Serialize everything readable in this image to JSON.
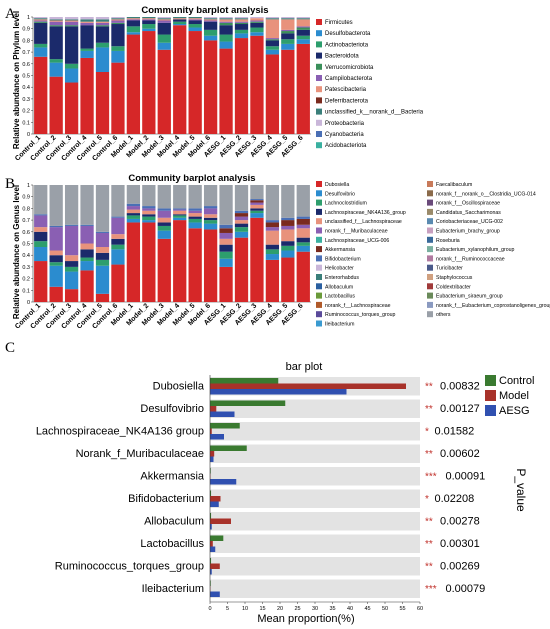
{
  "panels": {
    "A": {
      "label": "A",
      "title": "Community barplot analysis",
      "ylabel": "Relative abundance on Phylum level",
      "yticks": [
        "0",
        "0.1",
        "0.2",
        "0.3",
        "0.4",
        "0.5",
        "0.6",
        "0.7",
        "0.8",
        "0.9",
        "1"
      ],
      "samples": [
        "Control_1",
        "Control_2",
        "Control_3",
        "Control_4",
        "Control_5",
        "Control_6",
        "Model_1",
        "Model_2",
        "Model_3",
        "Model_4",
        "Model_5",
        "Model_6",
        "AESG_1",
        "AESG_2",
        "AESG_3",
        "AESG_4",
        "AESG_5",
        "AESG_6"
      ],
      "legend": [
        {
          "name": "Firmicutes",
          "color": "#d62728"
        },
        {
          "name": "Desulfobacterota",
          "color": "#2b8ccf"
        },
        {
          "name": "Actinobacteriota",
          "color": "#2d9e6d"
        },
        {
          "name": "Bacteroidota",
          "color": "#1b2a6b"
        },
        {
          "name": "Verrucomicrobiota",
          "color": "#3a8f5a"
        },
        {
          "name": "Campilobacterota",
          "color": "#8a5fb3"
        },
        {
          "name": "Patescibacteria",
          "color": "#e8927c"
        },
        {
          "name": "Deferribacterota",
          "color": "#7a2a1e"
        },
        {
          "name": "unclassified_k__norank_d__Bacteria",
          "color": "#3a7f7a"
        },
        {
          "name": "Proteobacteria",
          "color": "#c9b6d9"
        },
        {
          "name": "Cyanobacteria",
          "color": "#4a6fb5"
        },
        {
          "name": "Acidobacteriota",
          "color": "#3ab0a0"
        }
      ]
    },
    "B": {
      "label": "B",
      "title": "Community barplot analysis",
      "ylabel": "Relative abundance on Genus level",
      "yticks": [
        "0",
        "0.1",
        "0.2",
        "0.3",
        "0.4",
        "0.5",
        "0.6",
        "0.7",
        "0.8",
        "0.9",
        "1"
      ],
      "samples": [
        "Control_1",
        "Control_2",
        "Control_3",
        "Control_4",
        "Control_5",
        "Control_6",
        "Model_1",
        "Model_2",
        "Model_3",
        "Model_4",
        "Model_5",
        "Model_6",
        "AESG_1",
        "AESG_2",
        "AESG_3",
        "AESG_4",
        "AESG_5",
        "AESG_6"
      ],
      "legend_col1": [
        {
          "name": "Dubosiella",
          "color": "#d62728"
        },
        {
          "name": "Desulfovibrio",
          "color": "#2b8ccf"
        },
        {
          "name": "Lachnoclostridium",
          "color": "#2d9e6d"
        },
        {
          "name": "Lachnospiraceae_NK4A136_group",
          "color": "#1b2a6b"
        },
        {
          "name": "unclassified_f__Lachnospiraceae",
          "color": "#e8927c"
        },
        {
          "name": "norank_f__Muribaculaceae",
          "color": "#8a5fb3"
        },
        {
          "name": "Lachnospiraceae_UCG-006",
          "color": "#3ab0a0"
        },
        {
          "name": "Akkermansia",
          "color": "#7a2a1e"
        },
        {
          "name": "Bifidobacterium",
          "color": "#4a6fb5"
        },
        {
          "name": "Helicobacter",
          "color": "#c9b6d9"
        },
        {
          "name": "Enterorhabdus",
          "color": "#3a7f7a"
        },
        {
          "name": "Allobaculum",
          "color": "#2a5fa0"
        },
        {
          "name": "Lactobacillus",
          "color": "#6a9a3a"
        },
        {
          "name": "norank_f__Lachnospiraceae",
          "color": "#b05a2a"
        },
        {
          "name": "Ruminococcus_torques_group",
          "color": "#5a4a9a"
        },
        {
          "name": "Ileibacterium",
          "color": "#3a9ad0"
        }
      ],
      "legend_col2": [
        {
          "name": "Faecalibaculum",
          "color": "#c87a5a"
        },
        {
          "name": "norank_f__norank_o__Clostridia_UCG-014",
          "color": "#8a6a4a"
        },
        {
          "name": "norank_f__Oscillospiraceae",
          "color": "#6a4a7a"
        },
        {
          "name": "Candidatus_Saccharimonas",
          "color": "#9a8a6a"
        },
        {
          "name": "Coriobacteriaceae_UCG-002",
          "color": "#5a8ab0"
        },
        {
          "name": "Eubacterium_brachy_group",
          "color": "#c8a0c0"
        },
        {
          "name": "Roseburia",
          "color": "#3a6a9a"
        },
        {
          "name": "Eubacterium_xylanophilum_group",
          "color": "#7ab0a0"
        },
        {
          "name": "norank_f__Ruminococcaceae",
          "color": "#b07aa0"
        },
        {
          "name": "Turicibacter",
          "color": "#4a5a8a"
        },
        {
          "name": "Staphylococcus",
          "color": "#d0a080"
        },
        {
          "name": "Coldextribacter",
          "color": "#a03a3a"
        },
        {
          "name": "Eubacterium_siraeum_group",
          "color": "#6a8a5a"
        },
        {
          "name": "norank_f__Eubacterium_coprostanoligenes_group",
          "color": "#8a9ac0"
        },
        {
          "name": "others",
          "color": "#9aa0a8"
        }
      ]
    },
    "C": {
      "label": "C",
      "title": "bar plot",
      "xlabel": "Mean proportion(%)",
      "pvalue_label": "P_value",
      "legend": [
        {
          "name": "Control",
          "color": "#3a7a30"
        },
        {
          "name": "Model",
          "color": "#a8322a"
        },
        {
          "name": "AESG",
          "color": "#3050b0"
        }
      ]
    }
  },
  "chart_data": [
    {
      "type": "bar",
      "stacked": true,
      "title": "Community barplot analysis",
      "ylabel": "Relative abundance on Phylum level",
      "ylim": [
        0,
        1
      ],
      "categories": [
        "Control_1",
        "Control_2",
        "Control_3",
        "Control_4",
        "Control_5",
        "Control_6",
        "Model_1",
        "Model_2",
        "Model_3",
        "Model_4",
        "Model_5",
        "Model_6",
        "AESG_1",
        "AESG_2",
        "AESG_3",
        "AESG_4",
        "AESG_5",
        "AESG_6"
      ],
      "series": [
        {
          "name": "Firmicutes",
          "values": [
            0.66,
            0.49,
            0.44,
            0.65,
            0.53,
            0.61,
            0.85,
            0.88,
            0.72,
            0.93,
            0.88,
            0.8,
            0.73,
            0.82,
            0.84,
            0.68,
            0.72,
            0.77
          ]
        },
        {
          "name": "Desulfobacterota",
          "values": [
            0.08,
            0.12,
            0.12,
            0.06,
            0.21,
            0.1,
            0.02,
            0.02,
            0.06,
            0.01,
            0.03,
            0.04,
            0.06,
            0.04,
            0.03,
            0.04,
            0.05,
            0.04
          ]
        },
        {
          "name": "Actinobacteriota",
          "values": [
            0.03,
            0.03,
            0.04,
            0.02,
            0.04,
            0.04,
            0.05,
            0.04,
            0.07,
            0.02,
            0.03,
            0.05,
            0.06,
            0.03,
            0.04,
            0.03,
            0.04,
            0.03
          ]
        },
        {
          "name": "Bacteroidota",
          "values": [
            0.18,
            0.28,
            0.32,
            0.2,
            0.14,
            0.19,
            0.05,
            0.03,
            0.1,
            0.02,
            0.03,
            0.07,
            0.08,
            0.05,
            0.04,
            0.05,
            0.05,
            0.05
          ]
        },
        {
          "name": "Verrucomicrobiota",
          "values": [
            0.01,
            0.01,
            0.01,
            0.0,
            0.01,
            0.01,
            0.0,
            0.0,
            0.0,
            0.0,
            0.0,
            0.0,
            0.02,
            0.01,
            0.01,
            0.01,
            0.02,
            0.02
          ]
        },
        {
          "name": "Campilobacterota",
          "values": [
            0.01,
            0.03,
            0.03,
            0.02,
            0.02,
            0.02,
            0.01,
            0.01,
            0.02,
            0.0,
            0.01,
            0.01,
            0.01,
            0.01,
            0.01,
            0.01,
            0.01,
            0.01
          ]
        },
        {
          "name": "Patescibacteria",
          "values": [
            0.01,
            0.01,
            0.01,
            0.01,
            0.01,
            0.01,
            0.01,
            0.01,
            0.01,
            0.01,
            0.01,
            0.01,
            0.02,
            0.02,
            0.02,
            0.16,
            0.09,
            0.06
          ]
        },
        {
          "name": "Deferribacterota",
          "values": [
            0.0,
            0.0,
            0.0,
            0.0,
            0.0,
            0.0,
            0.0,
            0.0,
            0.0,
            0.0,
            0.0,
            0.0,
            0.0,
            0.0,
            0.0,
            0.0,
            0.0,
            0.0
          ]
        },
        {
          "name": "unclassified_k__norank_d__Bacteria",
          "values": [
            0.01,
            0.01,
            0.01,
            0.02,
            0.02,
            0.01,
            0.01,
            0.01,
            0.01,
            0.01,
            0.01,
            0.01,
            0.01,
            0.01,
            0.0,
            0.01,
            0.01,
            0.01
          ]
        },
        {
          "name": "Proteobacteria",
          "values": [
            0.01,
            0.02,
            0.02,
            0.02,
            0.02,
            0.01,
            0.0,
            0.0,
            0.01,
            0.0,
            0.0,
            0.01,
            0.01,
            0.01,
            0.01,
            0.01,
            0.01,
            0.01
          ]
        }
      ]
    },
    {
      "type": "bar",
      "stacked": true,
      "title": "Community barplot analysis",
      "ylabel": "Relative abundance on Genus level",
      "ylim": [
        0,
        1
      ],
      "categories": [
        "Control_1",
        "Control_2",
        "Control_3",
        "Control_4",
        "Control_5",
        "Control_6",
        "Model_1",
        "Model_2",
        "Model_3",
        "Model_4",
        "Model_5",
        "Model_6",
        "AESG_1",
        "AESG_2",
        "AESG_3",
        "AESG_4",
        "AESG_5",
        "AESG_6"
      ],
      "series": [
        {
          "name": "Dubosiella",
          "values": [
            0.35,
            0.13,
            0.11,
            0.27,
            0.07,
            0.32,
            0.68,
            0.68,
            0.54,
            0.7,
            0.63,
            0.62,
            0.3,
            0.55,
            0.72,
            0.36,
            0.38,
            0.43
          ]
        },
        {
          "name": "Desulfovibrio",
          "values": [
            0.12,
            0.18,
            0.15,
            0.08,
            0.24,
            0.13,
            0.03,
            0.02,
            0.07,
            0.02,
            0.05,
            0.05,
            0.07,
            0.05,
            0.04,
            0.05,
            0.06,
            0.05
          ]
        },
        {
          "name": "Lachnoclostridium",
          "values": [
            0.05,
            0.03,
            0.04,
            0.03,
            0.05,
            0.04,
            0.03,
            0.03,
            0.04,
            0.02,
            0.03,
            0.03,
            0.06,
            0.04,
            0.02,
            0.04,
            0.04,
            0.03
          ]
        },
        {
          "name": "Lachnospiraceae_NK4A136_group",
          "values": [
            0.08,
            0.06,
            0.05,
            0.07,
            0.06,
            0.05,
            0.02,
            0.02,
            0.03,
            0.01,
            0.02,
            0.02,
            0.06,
            0.03,
            0.02,
            0.04,
            0.04,
            0.04
          ]
        },
        {
          "name": "unclassified_f__Lachnospiraceae",
          "values": [
            0.04,
            0.04,
            0.05,
            0.05,
            0.05,
            0.04,
            0.03,
            0.03,
            0.04,
            0.03,
            0.03,
            0.03,
            0.05,
            0.03,
            0.03,
            0.12,
            0.1,
            0.08
          ]
        },
        {
          "name": "norank_f__Muribaculaceae",
          "values": [
            0.1,
            0.2,
            0.25,
            0.15,
            0.12,
            0.14,
            0.03,
            0.02,
            0.06,
            0.01,
            0.02,
            0.05,
            0.05,
            0.03,
            0.02,
            0.03,
            0.03,
            0.03
          ]
        },
        {
          "name": "Akkermansia",
          "values": [
            0.0,
            0.0,
            0.0,
            0.0,
            0.0,
            0.0,
            0.0,
            0.0,
            0.0,
            0.0,
            0.0,
            0.0,
            0.04,
            0.03,
            0.02,
            0.04,
            0.05,
            0.05
          ]
        },
        {
          "name": "Bifidobacterium",
          "values": [
            0.01,
            0.01,
            0.01,
            0.01,
            0.01,
            0.01,
            0.02,
            0.02,
            0.02,
            0.01,
            0.02,
            0.02,
            0.03,
            0.02,
            0.01,
            0.02,
            0.02,
            0.02
          ]
        },
        {
          "name": "others",
          "values": [
            0.25,
            0.35,
            0.34,
            0.34,
            0.4,
            0.27,
            0.16,
            0.18,
            0.2,
            0.2,
            0.2,
            0.18,
            0.34,
            0.22,
            0.12,
            0.3,
            0.28,
            0.27
          ]
        }
      ]
    },
    {
      "type": "bar",
      "orientation": "horizontal",
      "title": "bar plot",
      "xlabel": "Mean proportion(%)",
      "xlim": [
        0,
        60
      ],
      "xticks": [
        0,
        5,
        10,
        15,
        20,
        25,
        30,
        35,
        40,
        45,
        50,
        55,
        60
      ],
      "categories": [
        "Dubosiella",
        "Desulfovibrio",
        "Lachnospiraceae_NK4A136 group",
        "Norank_f_Muribaculaceae",
        "Akkermansia",
        "Bifidobacterium",
        "Allobaculum",
        "Lactobacillus",
        "Ruminococcus_torques_group",
        "Ileibacterium"
      ],
      "series": [
        {
          "name": "Control",
          "values": [
            19.5,
            21.5,
            8.5,
            10.5,
            0.2,
            0.3,
            0.3,
            3.8,
            0.3,
            0.2
          ]
        },
        {
          "name": "Model",
          "values": [
            56.0,
            1.8,
            0.5,
            1.2,
            0.1,
            3.0,
            6.0,
            0.8,
            2.8,
            0.1
          ]
        },
        {
          "name": "AESG",
          "values": [
            39.0,
            7.0,
            4.0,
            1.0,
            7.5,
            2.5,
            0.5,
            1.5,
            0.5,
            2.8
          ]
        }
      ],
      "significance": [
        "**",
        "**",
        "*",
        "**",
        "***",
        "*",
        "**",
        "**",
        "**",
        "***"
      ],
      "p_values": [
        "0.00832",
        "0.00127",
        "0.01582",
        "0.00602",
        "0.00091",
        "0.02208",
        "0.00278",
        "0.00301",
        "0.00269",
        "0.00079"
      ],
      "legend": "right"
    }
  ]
}
